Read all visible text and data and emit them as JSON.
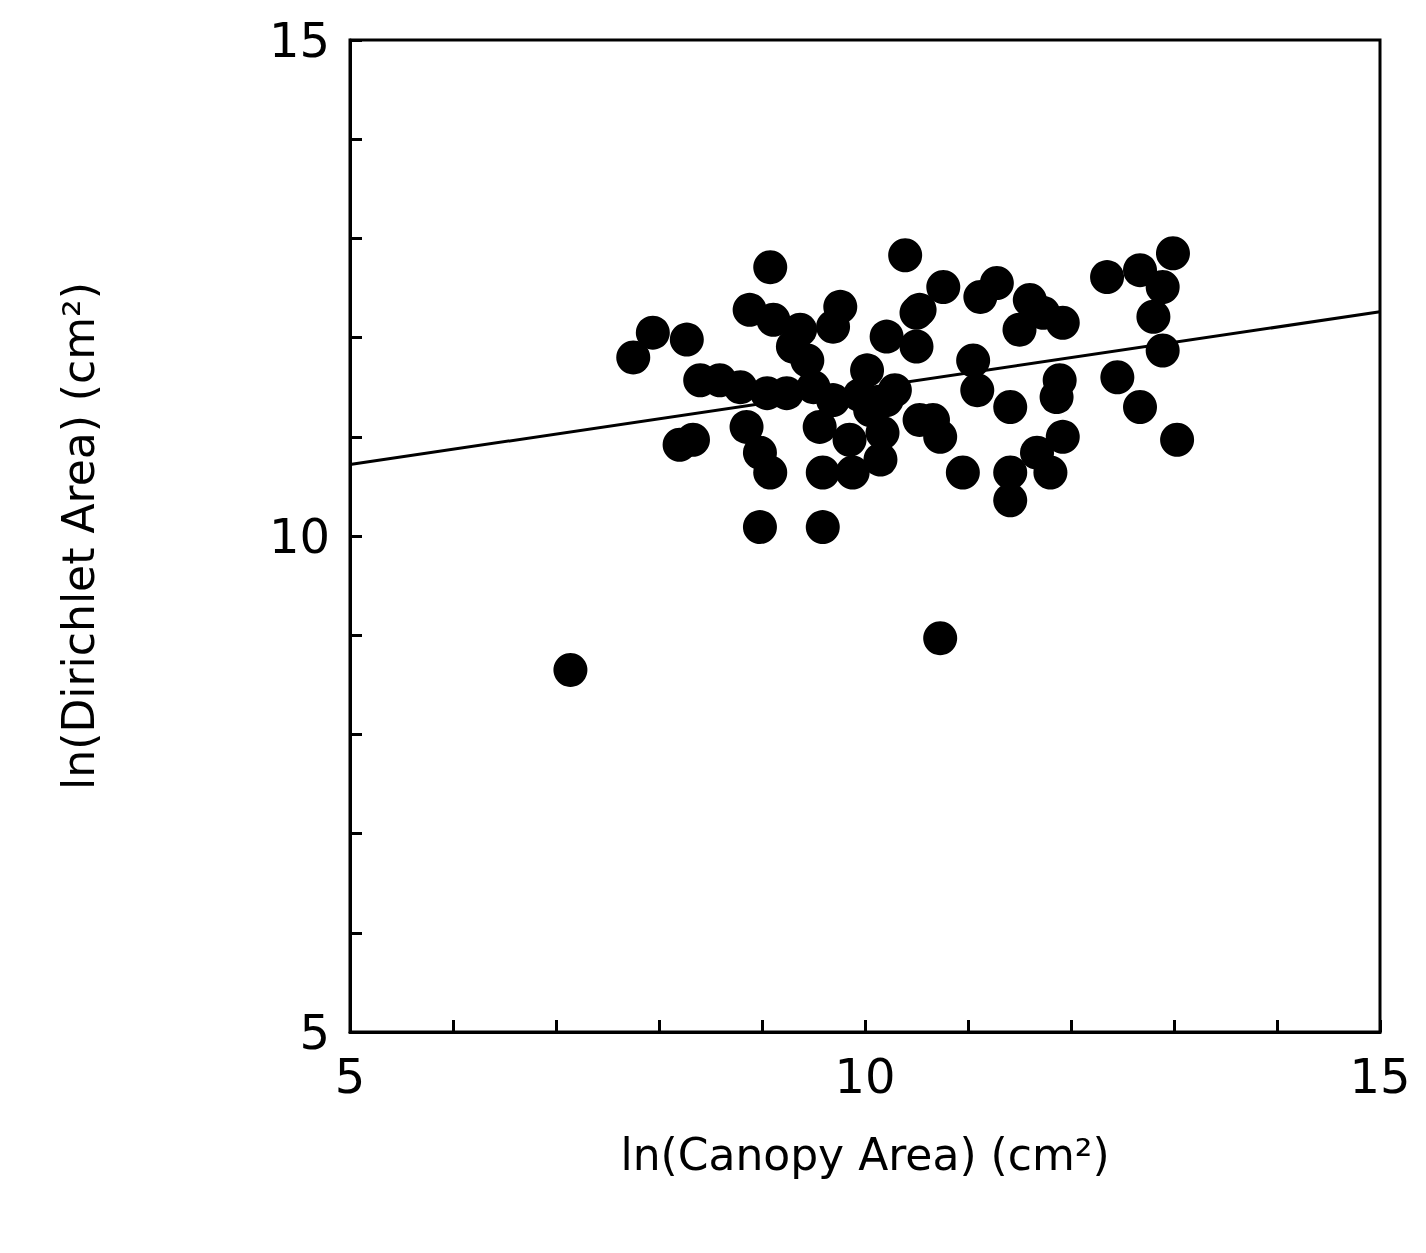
{
  "chart_data": {
    "type": "scatter",
    "xlabel": "ln(Canopy Area) (cm²)",
    "ylabel": "ln(Dirichlet Area) (cm²)",
    "xlim": [
      5,
      15
    ],
    "ylim": [
      5,
      15
    ],
    "xticks": [
      5,
      {
        "value": 6,
        "label": null
      },
      {
        "value": 7,
        "label": null
      },
      {
        "value": 8,
        "label": null
      },
      {
        "value": 9,
        "label": null
      },
      10,
      {
        "value": 11,
        "label": null
      },
      {
        "value": 12,
        "label": null
      },
      {
        "value": 13,
        "label": null
      },
      {
        "value": 14,
        "label": null
      },
      15
    ],
    "yticks": [
      5,
      {
        "value": 6,
        "label": null
      },
      {
        "value": 7,
        "label": null
      },
      {
        "value": 8,
        "label": null
      },
      {
        "value": 9,
        "label": null
      },
      10,
      {
        "value": 11,
        "label": null
      },
      {
        "value": 12,
        "label": null
      },
      {
        "value": 13,
        "label": null
      },
      {
        "value": 14,
        "label": null
      },
      15
    ],
    "grid": false,
    "marker": "circle",
    "series": [
      {
        "color": "#000000",
        "x": [
          7.14,
          10.73,
          8.98,
          9.59,
          10.39,
          9.08,
          7.75,
          7.94,
          8.27,
          8.4,
          8.33,
          8.2,
          8.88,
          9.11,
          9.76,
          9.69,
          9.3,
          9.44,
          8.79,
          9.05,
          9.24,
          8.85,
          8.98,
          9.08,
          9.56,
          9.59,
          9.88,
          9.5,
          9.69,
          10.21,
          10.21,
          10.17,
          10.5,
          10.53,
          10.02,
          10.76,
          10.53,
          10.5,
          11.28,
          11.12,
          11.05,
          11.09,
          11.41,
          11.89,
          11.86,
          11.5,
          11.92,
          11.73,
          10.66,
          10.73,
          10.95,
          11.41,
          11.41,
          11.67,
          11.92,
          11.8,
          12.35,
          12.67,
          12.99,
          12.89,
          12.8,
          12.89,
          12.45,
          12.67,
          13.03,
          9.85,
          10.05,
          10.29,
          9.95,
          8.59,
          9.37,
          11.6,
          10.15
        ],
        "values": [
          8.65,
          8.97,
          10.09,
          10.09,
          12.83,
          12.71,
          11.8,
          12.05,
          11.98,
          11.57,
          10.97,
          10.92,
          12.28,
          12.18,
          12.31,
          12.11,
          11.91,
          11.77,
          11.5,
          11.44,
          11.44,
          11.1,
          10.84,
          10.64,
          11.1,
          10.64,
          10.64,
          11.5,
          11.37,
          12.01,
          11.37,
          11.04,
          12.25,
          11.17,
          11.67,
          12.51,
          12.28,
          11.91,
          12.55,
          12.41,
          11.77,
          11.47,
          11.3,
          11.57,
          11.4,
          12.08,
          12.15,
          12.25,
          11.17,
          11.0,
          10.64,
          10.64,
          10.36,
          10.84,
          11.0,
          10.64,
          12.61,
          12.68,
          12.85,
          12.51,
          12.21,
          11.87,
          11.6,
          11.3,
          10.97,
          10.97,
          11.27,
          11.47,
          11.42,
          11.57,
          12.08,
          12.38,
          10.77
        ]
      },
      {
        "type": "line",
        "color": "#000000",
        "marker": "none",
        "line_style": "solid",
        "x": [
          5,
          15
        ],
        "values": [
          10.72,
          12.26
        ]
      }
    ]
  }
}
